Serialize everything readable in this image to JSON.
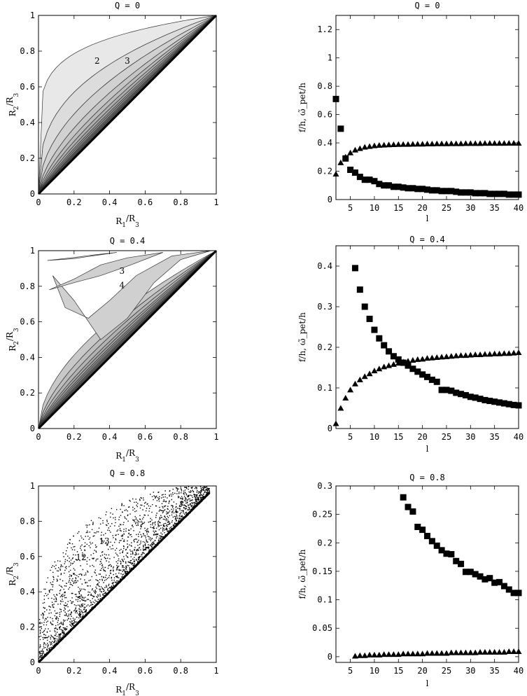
{
  "chart_data": [
    {
      "id": "region-q0",
      "type": "area",
      "title": "Q = 0",
      "xlabel": "R",
      "xlabel_sub": "1",
      "xlabel_den": "/R",
      "xlabel_den_sub": "3",
      "ylabel": "R",
      "ylabel_sub": "2",
      "ylabel_den": "/R",
      "ylabel_den_sub": "3",
      "xlim": [
        0,
        1
      ],
      "ylim": [
        0,
        1
      ],
      "xticks": [
        "0",
        "0.2",
        "0.4",
        "0.6",
        "0.8",
        "1"
      ],
      "yticks": [
        "0",
        "0.2",
        "0.4",
        "0.6",
        "0.8",
        "1"
      ],
      "region_labels": [
        {
          "text": "2",
          "x": 0.33,
          "y": 0.75
        },
        {
          "text": "3",
          "x": 0.5,
          "y": 0.75
        }
      ],
      "band_exponents": [
        0.15,
        0.35,
        0.5,
        0.62,
        0.7,
        0.76,
        0.81,
        0.85,
        0.88,
        0.91,
        0.93,
        0.95,
        0.97,
        1.0
      ]
    },
    {
      "id": "freq-q0",
      "type": "scatter",
      "title": "Q = 0",
      "xlabel": "l",
      "ylabel": "f/h, ω̃_pet/h",
      "xlim": [
        2,
        40
      ],
      "ylim": [
        0,
        1.3
      ],
      "xticks": [
        "5",
        "10",
        "15",
        "20",
        "25",
        "30",
        "35",
        "40"
      ],
      "xtick_values": [
        5,
        10,
        15,
        20,
        25,
        30,
        35,
        40
      ],
      "yticks": [
        "0",
        "0.2",
        "0.4",
        "0.6",
        "0.8",
        "1",
        "1.2"
      ],
      "ytick_values": [
        0,
        0.2,
        0.4,
        0.6,
        0.8,
        1.0,
        1.2
      ],
      "series": [
        {
          "marker": "square",
          "values": [
            [
              2,
              0.71
            ],
            [
              3,
              0.5
            ],
            [
              4,
              0.29
            ],
            [
              5,
              0.21
            ],
            [
              6,
              0.19
            ],
            [
              7,
              0.16
            ],
            [
              8,
              0.14
            ],
            [
              9,
              0.14
            ],
            [
              10,
              0.13
            ],
            [
              11,
              0.11
            ],
            [
              12,
              0.1
            ],
            [
              13,
              0.1
            ],
            [
              14,
              0.09
            ],
            [
              15,
              0.09
            ],
            [
              16,
              0.085
            ],
            [
              17,
              0.08
            ],
            [
              18,
              0.08
            ],
            [
              19,
              0.075
            ],
            [
              20,
              0.075
            ],
            [
              21,
              0.07
            ],
            [
              22,
              0.065
            ],
            [
              23,
              0.065
            ],
            [
              24,
              0.06
            ],
            [
              25,
              0.06
            ],
            [
              26,
              0.06
            ],
            [
              27,
              0.055
            ],
            [
              28,
              0.05
            ],
            [
              29,
              0.05
            ],
            [
              30,
              0.05
            ],
            [
              31,
              0.045
            ],
            [
              32,
              0.045
            ],
            [
              33,
              0.045
            ],
            [
              34,
              0.04
            ],
            [
              35,
              0.04
            ],
            [
              36,
              0.04
            ],
            [
              37,
              0.04
            ],
            [
              38,
              0.035
            ],
            [
              39,
              0.035
            ],
            [
              40,
              0.035
            ]
          ]
        },
        {
          "marker": "triangle",
          "values": [
            [
              2,
              0.18
            ],
            [
              3,
              0.26
            ],
            [
              4,
              0.3
            ],
            [
              5,
              0.33
            ],
            [
              6,
              0.35
            ],
            [
              7,
              0.36
            ],
            [
              8,
              0.37
            ],
            [
              9,
              0.375
            ],
            [
              10,
              0.38
            ],
            [
              11,
              0.383
            ],
            [
              12,
              0.385
            ],
            [
              13,
              0.387
            ],
            [
              14,
              0.388
            ],
            [
              15,
              0.389
            ],
            [
              16,
              0.39
            ],
            [
              17,
              0.39
            ],
            [
              18,
              0.391
            ],
            [
              19,
              0.392
            ],
            [
              20,
              0.392
            ],
            [
              21,
              0.393
            ],
            [
              22,
              0.393
            ],
            [
              23,
              0.394
            ],
            [
              24,
              0.394
            ],
            [
              25,
              0.394
            ],
            [
              26,
              0.395
            ],
            [
              27,
              0.395
            ],
            [
              28,
              0.395
            ],
            [
              29,
              0.396
            ],
            [
              30,
              0.396
            ],
            [
              31,
              0.396
            ],
            [
              32,
              0.396
            ],
            [
              33,
              0.397
            ],
            [
              34,
              0.397
            ],
            [
              35,
              0.397
            ],
            [
              36,
              0.397
            ],
            [
              37,
              0.397
            ],
            [
              38,
              0.398
            ],
            [
              39,
              0.398
            ],
            [
              40,
              0.398
            ]
          ]
        }
      ]
    },
    {
      "id": "region-q04",
      "type": "area",
      "title": "Q = 0.4",
      "xlabel": "R",
      "xlabel_sub": "1",
      "xlabel_den": "/R",
      "xlabel_den_sub": "3",
      "ylabel": "R",
      "ylabel_sub": "2",
      "ylabel_den": "/R",
      "ylabel_den_sub": "3",
      "xlim": [
        0,
        1
      ],
      "ylim": [
        0,
        1
      ],
      "xticks": [
        "0",
        "0.2",
        "0.4",
        "0.6",
        "0.8",
        "1"
      ],
      "yticks": [
        "0",
        "0.2",
        "0.4",
        "0.6",
        "0.8",
        "1"
      ],
      "region_labels": [
        {
          "text": "3",
          "x": 0.47,
          "y": 0.89
        },
        {
          "text": "4",
          "x": 0.47,
          "y": 0.81
        }
      ],
      "band_exponents": [
        0.55,
        0.65,
        0.72,
        0.78,
        0.82,
        0.86,
        0.89,
        0.92,
        0.94,
        0.96,
        0.98,
        1.0
      ]
    },
    {
      "id": "freq-q04",
      "type": "scatter",
      "title": "Q = 0.4",
      "xlabel": "l",
      "ylabel": "f/h, ω̃_pet/h",
      "xlim": [
        2,
        40
      ],
      "ylim": [
        0,
        0.45
      ],
      "xticks": [
        "5",
        "10",
        "15",
        "20",
        "25",
        "30",
        "35",
        "40"
      ],
      "xtick_values": [
        5,
        10,
        15,
        20,
        25,
        30,
        35,
        40
      ],
      "yticks": [
        "0",
        "0.1",
        "0.2",
        "0.3",
        "0.4"
      ],
      "ytick_values": [
        0,
        0.1,
        0.2,
        0.3,
        0.4
      ],
      "series": [
        {
          "marker": "square",
          "values": [
            [
              6,
              0.395
            ],
            [
              7,
              0.342
            ],
            [
              8,
              0.3
            ],
            [
              9,
              0.27
            ],
            [
              10,
              0.243
            ],
            [
              11,
              0.222
            ],
            [
              12,
              0.205
            ],
            [
              13,
              0.19
            ],
            [
              14,
              0.178
            ],
            [
              15,
              0.17
            ],
            [
              16,
              0.162
            ],
            [
              17,
              0.155
            ],
            [
              18,
              0.147
            ],
            [
              19,
              0.14
            ],
            [
              20,
              0.133
            ],
            [
              21,
              0.127
            ],
            [
              22,
              0.12
            ],
            [
              23,
              0.115
            ],
            [
              24,
              0.095
            ],
            [
              25,
              0.095
            ],
            [
              26,
              0.093
            ],
            [
              27,
              0.088
            ],
            [
              28,
              0.085
            ],
            [
              29,
              0.082
            ],
            [
              30,
              0.078
            ],
            [
              31,
              0.076
            ],
            [
              32,
              0.073
            ],
            [
              33,
              0.07
            ],
            [
              34,
              0.068
            ],
            [
              35,
              0.066
            ],
            [
              36,
              0.064
            ],
            [
              37,
              0.062
            ],
            [
              38,
              0.06
            ],
            [
              39,
              0.058
            ],
            [
              40,
              0.057
            ]
          ]
        },
        {
          "marker": "triangle",
          "values": [
            [
              2,
              0.012
            ],
            [
              3,
              0.05
            ],
            [
              4,
              0.075
            ],
            [
              5,
              0.095
            ],
            [
              6,
              0.11
            ],
            [
              7,
              0.12
            ],
            [
              8,
              0.128
            ],
            [
              9,
              0.135
            ],
            [
              10,
              0.142
            ],
            [
              11,
              0.147
            ],
            [
              12,
              0.152
            ],
            [
              13,
              0.155
            ],
            [
              14,
              0.158
            ],
            [
              15,
              0.161
            ],
            [
              16,
              0.164
            ],
            [
              17,
              0.166
            ],
            [
              18,
              0.168
            ],
            [
              19,
              0.17
            ],
            [
              20,
              0.171
            ],
            [
              21,
              0.173
            ],
            [
              22,
              0.174
            ],
            [
              23,
              0.175
            ],
            [
              24,
              0.176
            ],
            [
              25,
              0.177
            ],
            [
              26,
              0.178
            ],
            [
              27,
              0.179
            ],
            [
              28,
              0.18
            ],
            [
              29,
              0.18
            ],
            [
              30,
              0.181
            ],
            [
              31,
              0.182
            ],
            [
              32,
              0.182
            ],
            [
              33,
              0.183
            ],
            [
              34,
              0.183
            ],
            [
              35,
              0.184
            ],
            [
              36,
              0.184
            ],
            [
              37,
              0.185
            ],
            [
              38,
              0.185
            ],
            [
              39,
              0.186
            ],
            [
              40,
              0.187
            ]
          ]
        }
      ]
    },
    {
      "id": "region-q08",
      "type": "scatter",
      "title": "Q = 0.8",
      "xlabel": "R",
      "xlabel_sub": "1",
      "xlabel_den": "/R",
      "xlabel_den_sub": "3",
      "ylabel": "R",
      "ylabel_sub": "2",
      "ylabel_den": "/R",
      "ylabel_den_sub": "3",
      "xlim": [
        0,
        1
      ],
      "ylim": [
        0,
        1
      ],
      "xticks": [
        "0",
        "0.2",
        "0.4",
        "0.6",
        "0.8",
        "1"
      ],
      "yticks": [
        "0",
        "0.2",
        "0.4",
        "0.6",
        "0.8",
        "1"
      ],
      "region_labels": [
        {
          "text": "13",
          "x": 0.37,
          "y": 0.69
        },
        {
          "text": "12",
          "x": 0.24,
          "y": 0.6
        }
      ]
    },
    {
      "id": "freq-q08",
      "type": "scatter",
      "title": "Q = 0.8",
      "xlabel": "l",
      "ylabel": "f/h, ω̃_pet/h",
      "xlim": [
        2,
        40
      ],
      "ylim": [
        -0.01,
        0.3
      ],
      "xticks": [
        "5",
        "10",
        "15",
        "20",
        "25",
        "30",
        "35",
        "40"
      ],
      "xtick_values": [
        5,
        10,
        15,
        20,
        25,
        30,
        35,
        40
      ],
      "yticks": [
        "0",
        "0.05",
        "0.1",
        "0.15",
        "0.2",
        "0.25",
        "0.3"
      ],
      "ytick_values": [
        0,
        0.05,
        0.1,
        0.15,
        0.2,
        0.25,
        0.3
      ],
      "series": [
        {
          "marker": "square",
          "values": [
            [
              16,
              0.28
            ],
            [
              17,
              0.263
            ],
            [
              18,
              0.255
            ],
            [
              19,
              0.228
            ],
            [
              20,
              0.223
            ],
            [
              21,
              0.212
            ],
            [
              22,
              0.203
            ],
            [
              23,
              0.195
            ],
            [
              24,
              0.187
            ],
            [
              25,
              0.181
            ],
            [
              26,
              0.18
            ],
            [
              27,
              0.168
            ],
            [
              28,
              0.163
            ],
            [
              29,
              0.149
            ],
            [
              30,
              0.149
            ],
            [
              31,
              0.145
            ],
            [
              32,
              0.141
            ],
            [
              33,
              0.136
            ],
            [
              34,
              0.138
            ],
            [
              35,
              0.13
            ],
            [
              36,
              0.131
            ],
            [
              37,
              0.124
            ],
            [
              38,
              0.118
            ],
            [
              39,
              0.112
            ],
            [
              40,
              0.112
            ]
          ]
        },
        {
          "marker": "triangle",
          "values": [
            [
              6,
              0.001
            ],
            [
              7,
              0.002
            ],
            [
              8,
              0.002
            ],
            [
              9,
              0.003
            ],
            [
              10,
              0.003
            ],
            [
              11,
              0.003
            ],
            [
              12,
              0.004
            ],
            [
              13,
              0.004
            ],
            [
              14,
              0.004
            ],
            [
              15,
              0.004
            ],
            [
              16,
              0.005
            ],
            [
              17,
              0.005
            ],
            [
              18,
              0.005
            ],
            [
              19,
              0.005
            ],
            [
              20,
              0.005
            ],
            [
              21,
              0.006
            ],
            [
              22,
              0.006
            ],
            [
              23,
              0.006
            ],
            [
              24,
              0.006
            ],
            [
              25,
              0.006
            ],
            [
              26,
              0.007
            ],
            [
              27,
              0.007
            ],
            [
              28,
              0.007
            ],
            [
              29,
              0.007
            ],
            [
              30,
              0.007
            ],
            [
              31,
              0.007
            ],
            [
              32,
              0.008
            ],
            [
              33,
              0.008
            ],
            [
              34,
              0.008
            ],
            [
              35,
              0.008
            ],
            [
              36,
              0.008
            ],
            [
              37,
              0.008
            ],
            [
              38,
              0.009
            ],
            [
              39,
              0.009
            ],
            [
              40,
              0.009
            ]
          ]
        }
      ]
    }
  ]
}
